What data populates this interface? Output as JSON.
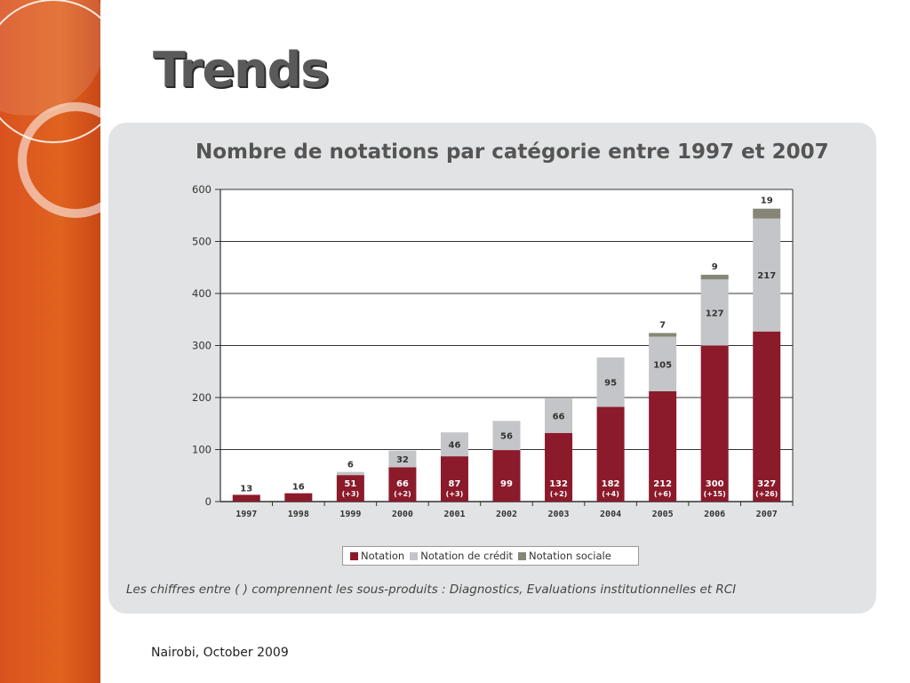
{
  "slide": {
    "title": "Trends",
    "footer": "Nairobi, October 2009",
    "accent_color": "#e0631f"
  },
  "chart_data": {
    "type": "bar",
    "stacked": true,
    "title": "Nombre de notations par catégorie entre 1997 et 2007",
    "xlabel": "",
    "ylabel": "",
    "ylim": [
      0,
      600
    ],
    "yticks": [
      0,
      100,
      200,
      300,
      400,
      500,
      600
    ],
    "grid": true,
    "legend_placement": "bottom",
    "categories": [
      "1997",
      "1998",
      "1999",
      "2000",
      "2001",
      "2002",
      "2003",
      "2004",
      "2005",
      "2006",
      "2007"
    ],
    "series": [
      {
        "name": "Notation",
        "color": "#8b1a2b",
        "values": [
          13,
          16,
          51,
          66,
          87,
          99,
          132,
          182,
          212,
          300,
          327
        ],
        "labels": [
          "13",
          "16",
          "51",
          "66",
          "87",
          "99",
          "132",
          "182",
          "212",
          "300",
          "327"
        ],
        "sub_labels": [
          "",
          "",
          "(+3)",
          "(+2)",
          "(+3)",
          "",
          "(+2)",
          "(+4)",
          "(+6)",
          "(+15)",
          "(+26)"
        ]
      },
      {
        "name": "Notation de crédit",
        "color": "#c4c5c8",
        "values": [
          0,
          0,
          6,
          32,
          46,
          56,
          66,
          95,
          105,
          127,
          217
        ],
        "labels": [
          "",
          "",
          "6",
          "32",
          "46",
          "56",
          "66",
          "95",
          "105",
          "127",
          "217"
        ]
      },
      {
        "name": "Notation sociale",
        "color": "#858675",
        "values": [
          0,
          0,
          0,
          0,
          0,
          0,
          0,
          0,
          7,
          9,
          19
        ],
        "labels": [
          "",
          "",
          "",
          "",
          "",
          "",
          "",
          "",
          "7",
          "9",
          "19"
        ]
      }
    ],
    "footnote": "Les chiffres entre ( ) comprennent les sous-produits : Diagnostics, Evaluations institutionnelles et RCI"
  }
}
